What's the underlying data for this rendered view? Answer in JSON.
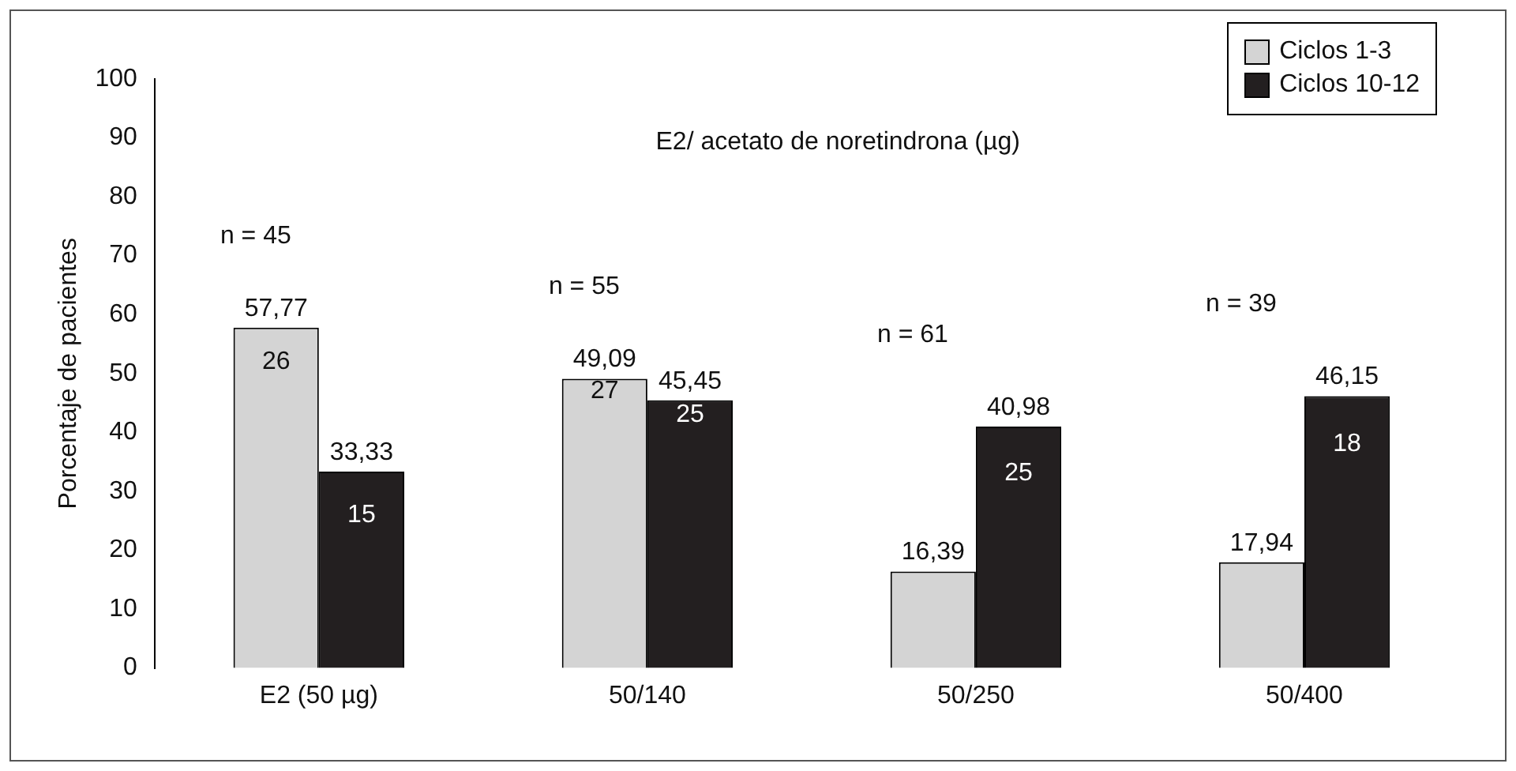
{
  "chart_data": {
    "type": "bar",
    "ylabel": "Porcentaje de pacientes",
    "categories": [
      "E2 (50 µg)",
      "50/140",
      "50/250",
      "50/400"
    ],
    "series": [
      {
        "name": "Ciclos 1-3",
        "color": "#d4d4d4",
        "values": [
          57.77,
          49.09,
          16.39,
          17.94
        ],
        "value_labels": [
          "57,77",
          "49,09",
          "16,39",
          "17,94"
        ]
      },
      {
        "name": "Ciclos 10-12",
        "color": "#231f20",
        "values": [
          33.33,
          45.45,
          40.98,
          46.15
        ],
        "value_labels": [
          "33,33",
          "45,45",
          "40,98",
          "46,15"
        ]
      }
    ],
    "ylim": [
      0,
      100
    ],
    "yticks": [
      0,
      10,
      20,
      30,
      40,
      50,
      60,
      70,
      80,
      90,
      100
    ],
    "grid": false,
    "legend": "top right",
    "annotations": [
      "E2/ acetato de noretindrona (µg)",
      "n = 45",
      "n = 55",
      "n = 61",
      "n = 39",
      {
        "text": "26",
        "x": "E2 (50 µg)",
        "y": 52
      },
      {
        "text": "15",
        "x": "E2 (50 µg)",
        "y": 26
      },
      {
        "text": "27",
        "x": "50/140",
        "y": 47
      },
      {
        "text": "25",
        "x": "50/140",
        "y": 43
      },
      {
        "text": "25",
        "x": "50/250",
        "y": 33
      },
      {
        "text": "18",
        "x": "50/400",
        "y": 38
      }
    ]
  }
}
